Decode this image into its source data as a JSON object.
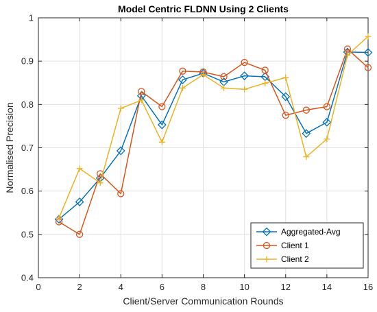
{
  "chart_data": {
    "type": "line",
    "title": "Model Centric FLDNN Using 2 Clients",
    "xlabel": "Client/Server Communication Rounds",
    "ylabel": "Normalised Precision",
    "xlim": [
      0,
      16
    ],
    "ylim": [
      0.4,
      1
    ],
    "xticks": [
      0,
      2,
      4,
      6,
      8,
      10,
      12,
      14,
      16
    ],
    "yticks": [
      0.4,
      0.5,
      0.6,
      0.7,
      0.8,
      0.9,
      1
    ],
    "xtick_labels": [
      "0",
      "2",
      "4",
      "6",
      "8",
      "10",
      "12",
      "14",
      "16"
    ],
    "ytick_labels": [
      "0.4",
      "0.5",
      "0.6",
      "0.7",
      "0.8",
      "0.9",
      "1"
    ],
    "grid": true,
    "legend_position": "bottom-right",
    "x": [
      1,
      2,
      3,
      4,
      5,
      6,
      7,
      8,
      9,
      10,
      11,
      12,
      13,
      14,
      15,
      16
    ],
    "series": [
      {
        "name": "Aggregated-Avg",
        "color": "#0072BD",
        "marker": "diamond",
        "values": [
          0.535,
          0.575,
          0.63,
          0.693,
          0.82,
          0.753,
          0.857,
          0.872,
          0.852,
          0.866,
          0.864,
          0.818,
          0.733,
          0.759,
          0.921,
          0.92
        ]
      },
      {
        "name": "Client 1",
        "color": "#D95319",
        "marker": "circle",
        "values": [
          0.529,
          0.5,
          0.64,
          0.594,
          0.83,
          0.795,
          0.877,
          0.875,
          0.864,
          0.897,
          0.879,
          0.775,
          0.787,
          0.795,
          0.928,
          0.885
        ]
      },
      {
        "name": "Client 2",
        "color": "#EDB120",
        "marker": "plus",
        "values": [
          0.538,
          0.652,
          0.619,
          0.791,
          0.81,
          0.713,
          0.838,
          0.869,
          0.838,
          0.835,
          0.849,
          0.862,
          0.679,
          0.72,
          0.914,
          0.957
        ]
      }
    ]
  }
}
